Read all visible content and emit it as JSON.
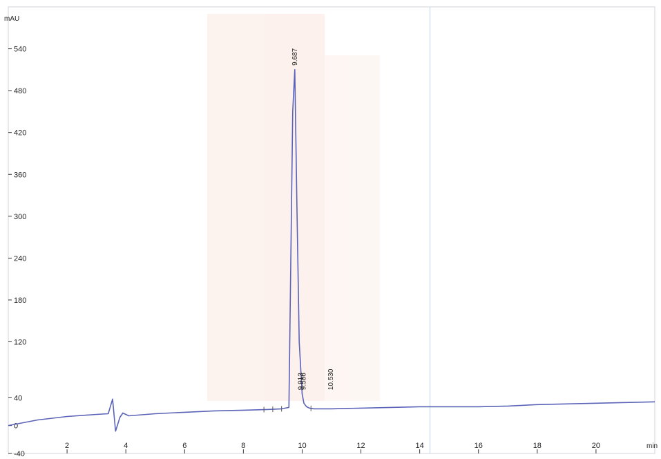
{
  "chart_data": {
    "type": "line",
    "title": "",
    "xlabel": "",
    "ylabel": "",
    "y_unit": "mAU",
    "x_unit": "min",
    "xlim": [
      0,
      22
    ],
    "ylim": [
      -40,
      600
    ],
    "x_ticks": [
      2,
      4,
      6,
      8,
      10,
      12,
      14,
      16,
      18,
      20
    ],
    "x_tick_labels": [
      "2",
      "4",
      "6",
      "8",
      "10",
      "12",
      "14",
      "16",
      "18",
      "20"
    ],
    "y_ticks": [
      -40,
      0,
      40,
      120,
      180,
      240,
      300,
      360,
      420,
      480,
      540
    ],
    "y_tick_labels": [
      "-40",
      "0",
      "40",
      "120",
      "180",
      "240",
      "300",
      "360",
      "420",
      "480",
      "540"
    ],
    "grid": false,
    "series": [
      {
        "color": "#5b63b8",
        "x": [
          0,
          1,
          2,
          3,
          3.4,
          3.55,
          3.65,
          3.8,
          3.9,
          4.1,
          5,
          6,
          7,
          8,
          8.8,
          9.3,
          9.55,
          9.68,
          9.75,
          9.82,
          9.9,
          10.0,
          10.06,
          10.15,
          10.25,
          10.4,
          11,
          12,
          13,
          14,
          15,
          16,
          17,
          18,
          19,
          20,
          21,
          22
        ],
        "y": [
          0,
          8,
          13,
          16,
          17,
          38,
          -8,
          12,
          18,
          14,
          17,
          19,
          21,
          22,
          23,
          24,
          26,
          450,
          510,
          320,
          120,
          45,
          32,
          27,
          25,
          24,
          24,
          25,
          26,
          27,
          27,
          27,
          28,
          30,
          31,
          32,
          33,
          34
        ]
      }
    ],
    "peak_labels": [
      {
        "x": 9.82,
        "y": 510,
        "text": "9.687"
      },
      {
        "x": 10.03,
        "y": 45,
        "text": "9.913"
      },
      {
        "x": 10.12,
        "y": 45,
        "text": "9.586"
      },
      {
        "x": 11.05,
        "y": 45,
        "text": "10.530"
      }
    ],
    "baseline_markers": [
      8.7,
      9.0,
      9.3,
      10.3
    ],
    "reference_line_x": 14.35
  }
}
